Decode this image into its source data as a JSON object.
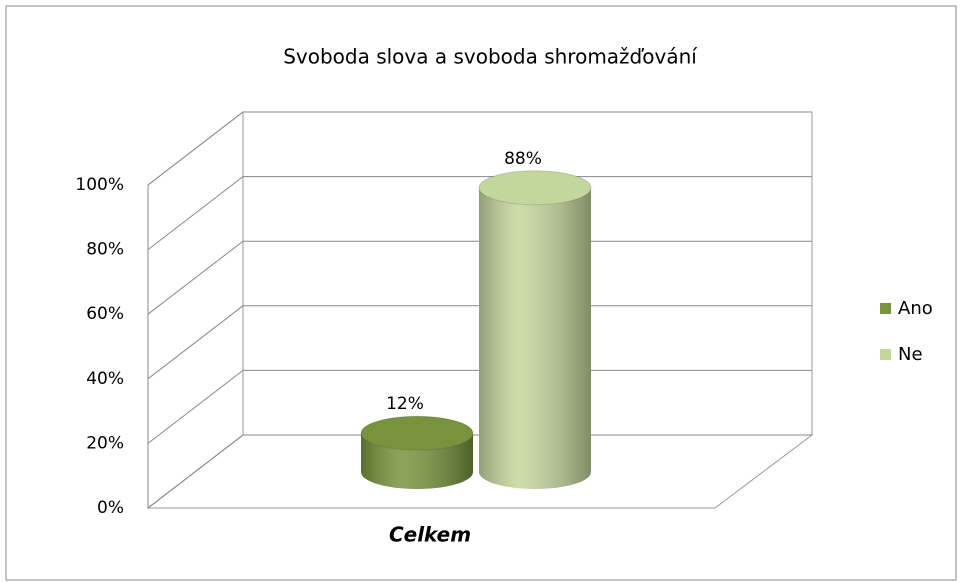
{
  "chart_data": {
    "type": "bar3d",
    "title": "Svoboda slova a svoboda shromažďování",
    "categories": [
      "Celkem"
    ],
    "series": [
      {
        "name": "Ano",
        "color": "#77933c",
        "values": [
          12
        ],
        "value_labels": [
          "12%"
        ]
      },
      {
        "name": "Ne",
        "color": "#c3d69b",
        "values": [
          88
        ],
        "value_labels": [
          "88%"
        ]
      }
    ],
    "ylim": [
      0,
      100
    ],
    "yticks": [
      {
        "value": 0,
        "label": "0%"
      },
      {
        "value": 20,
        "label": "20%"
      },
      {
        "value": 40,
        "label": "40%"
      },
      {
        "value": 60,
        "label": "60%"
      },
      {
        "value": 80,
        "label": "80%"
      },
      {
        "value": 100,
        "label": "100%"
      }
    ],
    "grid": true,
    "legend": "right"
  }
}
